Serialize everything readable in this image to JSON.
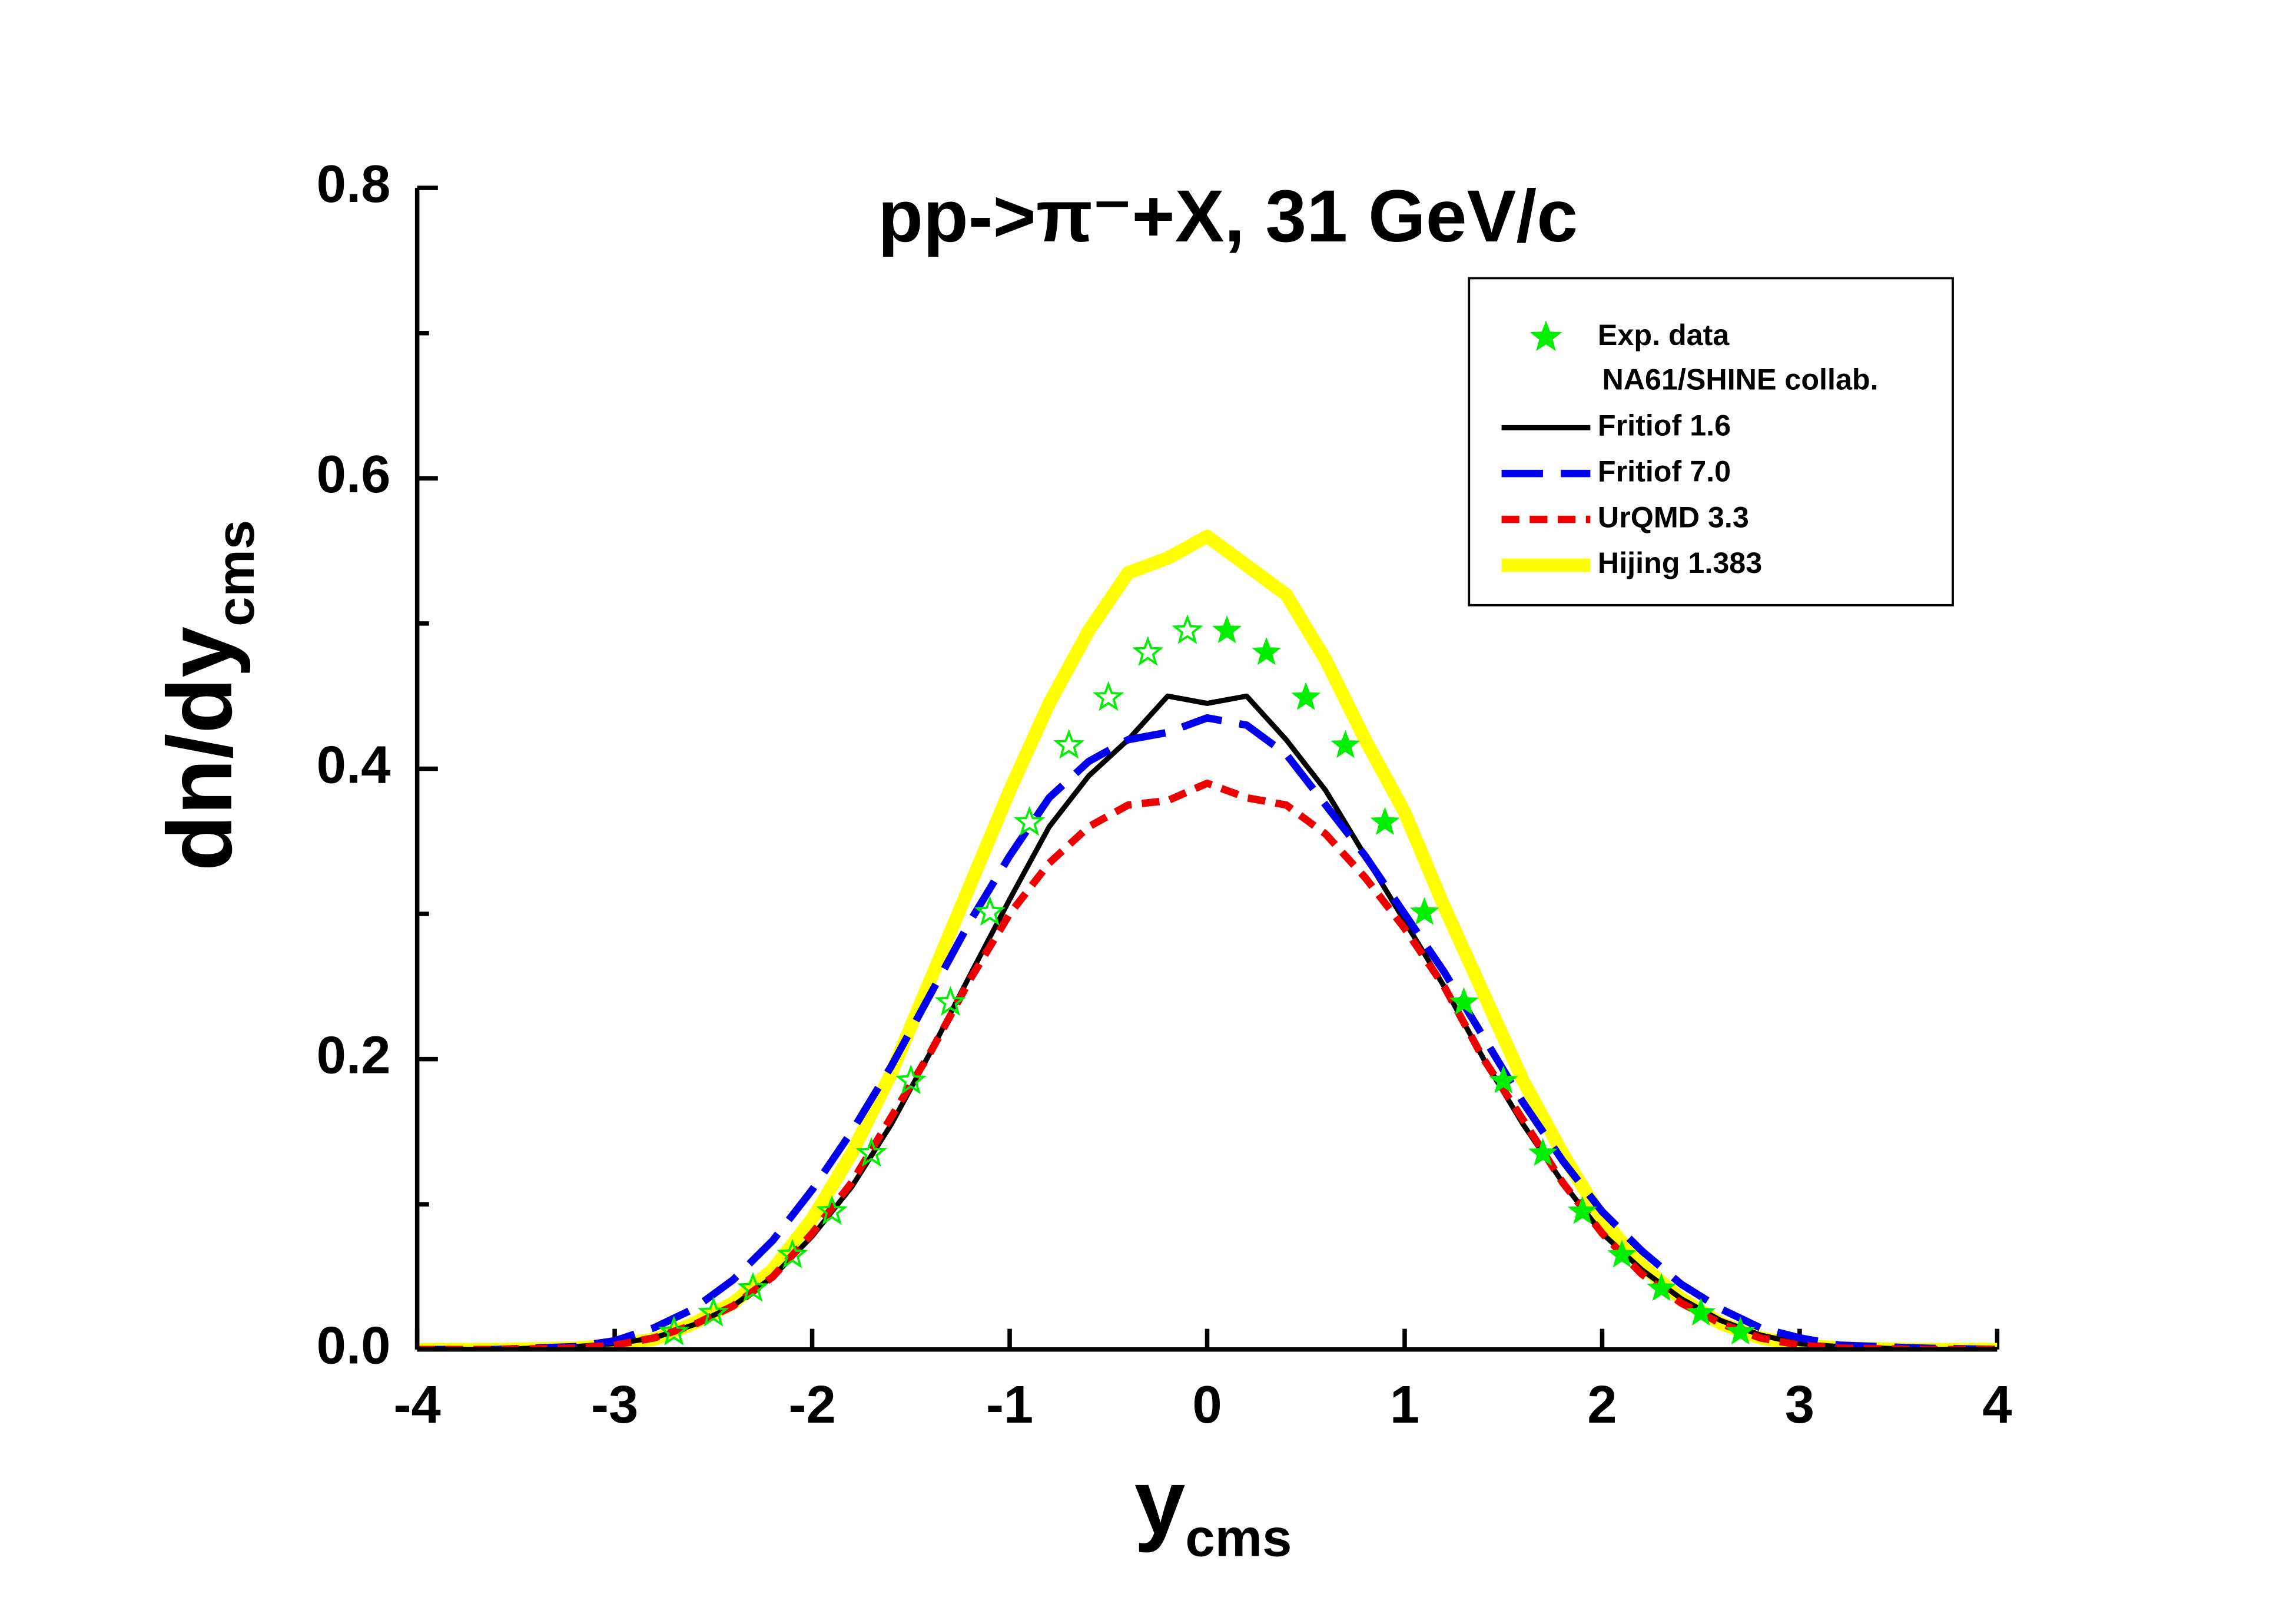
{
  "chart_data": {
    "type": "line",
    "title": "pp->π⁻+X, 31 GeV/c",
    "x_label": {
      "main": "y",
      "sub": "cms"
    },
    "y_label": {
      "main": "dn/dy",
      "sub": "cms"
    },
    "xlim": [
      -4,
      4
    ],
    "xticks": [
      -4,
      -3,
      -2,
      -1,
      0,
      1,
      2,
      3,
      4
    ],
    "ylim": [
      0,
      0.8
    ],
    "yticks": [
      {
        "value": 0,
        "label": "0.0"
      },
      0.2,
      0.4,
      0.6,
      0.8
    ],
    "yminor": [
      0.1,
      0.3,
      0.5,
      0.7
    ],
    "legend": "upper right",
    "series": [
      {
        "name": "Exp. data",
        "note": "NA61/SHINE collab.",
        "type": "scatter",
        "color": "#00ee00",
        "x": [
          -2.7,
          -2.5,
          -2.3,
          -2.1,
          -1.9,
          -1.7,
          -1.5,
          -1.3,
          -1.1,
          -0.9,
          -0.7,
          -0.5,
          -0.3,
          -0.1,
          0.1,
          0.3,
          0.5,
          0.7,
          0.9,
          1.1,
          1.3,
          1.5,
          1.7,
          1.9,
          2.1,
          2.3,
          2.5,
          2.7
        ],
        "values": [
          0.012,
          0.025,
          0.042,
          0.065,
          0.095,
          0.135,
          0.185,
          0.239,
          0.301,
          0.363,
          0.416,
          0.449,
          0.48,
          0.495,
          0.495,
          0.48,
          0.449,
          0.416,
          0.363,
          0.301,
          0.239,
          0.185,
          0.135,
          0.095,
          0.065,
          0.042,
          0.025,
          0.012
        ]
      },
      {
        "name": "Fritiof 1.6",
        "type": "line",
        "color": "#000000",
        "dash": "solid",
        "x": [
          -4,
          -3.6,
          -3.2,
          -3,
          -2.8,
          -2.6,
          -2.4,
          -2.2,
          -2,
          -1.8,
          -1.6,
          -1.4,
          -1.2,
          -1,
          -0.8,
          -0.6,
          -0.4,
          -0.2,
          0,
          0.2,
          0.4,
          0.6,
          0.8,
          1,
          1.2,
          1.4,
          1.6,
          1.8,
          2,
          2.2,
          2.4,
          2.6,
          2.8,
          3,
          3.2,
          3.6,
          4
        ],
        "values": [
          0,
          0,
          0.002,
          0.004,
          0.008,
          0.017,
          0.03,
          0.05,
          0.078,
          0.112,
          0.155,
          0.205,
          0.258,
          0.31,
          0.36,
          0.395,
          0.42,
          0.45,
          0.445,
          0.45,
          0.42,
          0.385,
          0.34,
          0.295,
          0.25,
          0.2,
          0.155,
          0.115,
          0.08,
          0.055,
          0.035,
          0.02,
          0.01,
          0.004,
          0.002,
          0,
          0
        ]
      },
      {
        "name": "Fritiof 7.0",
        "type": "line",
        "color": "#0000ee",
        "dash": "dashed",
        "x": [
          -4,
          -3.6,
          -3.2,
          -3,
          -2.8,
          -2.6,
          -2.4,
          -2.2,
          -2,
          -1.8,
          -1.6,
          -1.4,
          -1.2,
          -1,
          -0.8,
          -0.6,
          -0.4,
          -0.2,
          0,
          0.2,
          0.4,
          0.6,
          0.8,
          1,
          1.2,
          1.4,
          1.6,
          1.8,
          2,
          2.2,
          2.4,
          2.6,
          2.8,
          3,
          3.2,
          3.6,
          4
        ],
        "values": [
          0,
          0,
          0.002,
          0.006,
          0.015,
          0.028,
          0.048,
          0.075,
          0.11,
          0.15,
          0.195,
          0.245,
          0.295,
          0.34,
          0.38,
          0.405,
          0.42,
          0.425,
          0.435,
          0.43,
          0.41,
          0.375,
          0.34,
          0.3,
          0.26,
          0.215,
          0.17,
          0.13,
          0.095,
          0.068,
          0.045,
          0.028,
          0.015,
          0.008,
          0.003,
          0.001,
          0
        ]
      },
      {
        "name": "UrQMD 3.3",
        "type": "line",
        "color": "#ee0000",
        "dash": "dotted",
        "x": [
          -4,
          -3.6,
          -3.2,
          -3,
          -2.8,
          -2.6,
          -2.4,
          -2.2,
          -2,
          -1.8,
          -1.6,
          -1.4,
          -1.2,
          -1,
          -0.8,
          -0.6,
          -0.4,
          -0.2,
          0,
          0.2,
          0.4,
          0.6,
          0.8,
          1,
          1.2,
          1.4,
          1.6,
          1.8,
          2,
          2.2,
          2.4,
          2.6,
          2.8,
          3,
          3.2,
          3.6,
          4
        ],
        "values": [
          0,
          0,
          0.001,
          0.003,
          0.008,
          0.017,
          0.03,
          0.05,
          0.08,
          0.115,
          0.16,
          0.205,
          0.255,
          0.3,
          0.335,
          0.36,
          0.375,
          0.378,
          0.39,
          0.38,
          0.375,
          0.355,
          0.325,
          0.29,
          0.25,
          0.2,
          0.158,
          0.115,
          0.08,
          0.052,
          0.032,
          0.018,
          0.008,
          0.003,
          0.001,
          0,
          0
        ]
      },
      {
        "name": "Hijing 1.383",
        "type": "line",
        "color": "#ffff00",
        "dash": "thick",
        "x": [
          -4,
          -3.6,
          -3.2,
          -3,
          -2.8,
          -2.6,
          -2.4,
          -2.2,
          -2,
          -1.8,
          -1.6,
          -1.4,
          -1.2,
          -1,
          -0.8,
          -0.6,
          -0.4,
          -0.2,
          0,
          0.2,
          0.4,
          0.6,
          0.8,
          1,
          1.2,
          1.4,
          1.6,
          1.8,
          2,
          2.2,
          2.4,
          2.6,
          2.8,
          3,
          3.2,
          3.6,
          4
        ],
        "values": [
          0,
          0,
          0.001,
          0.003,
          0.007,
          0.018,
          0.032,
          0.055,
          0.09,
          0.135,
          0.19,
          0.255,
          0.32,
          0.385,
          0.445,
          0.495,
          0.535,
          0.545,
          0.56,
          0.54,
          0.52,
          0.475,
          0.42,
          0.37,
          0.305,
          0.245,
          0.185,
          0.135,
          0.09,
          0.058,
          0.035,
          0.018,
          0.008,
          0.003,
          0.001,
          0,
          0
        ]
      }
    ]
  }
}
